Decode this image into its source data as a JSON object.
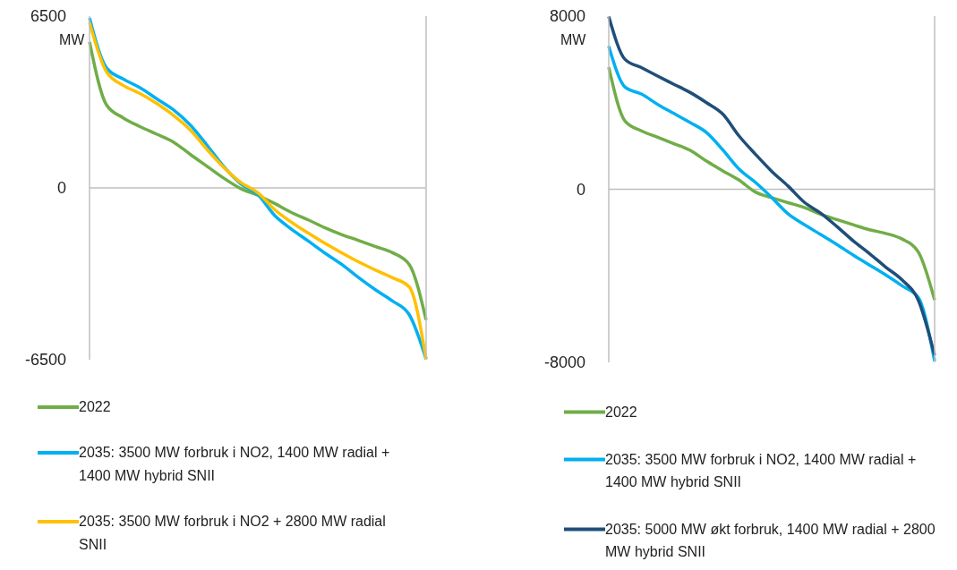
{
  "chart_data": [
    {
      "type": "line",
      "ylabel": "MW",
      "categories": [
        null,
        null,
        null,
        null,
        null,
        null,
        null,
        null,
        null,
        null,
        null,
        null,
        null,
        null,
        null,
        null,
        null,
        null,
        null,
        null,
        null
      ],
      "ylim": [
        -6500,
        6500
      ],
      "yticks": [
        -6500,
        0,
        6500
      ],
      "legend": "bottom",
      "ref_lines": [
        {
          "axis": "y",
          "value": 0,
          "color": "#bfbfbf"
        }
      ],
      "series": [
        {
          "name": "2022",
          "color": "#70ad47",
          "values": [
            5520,
            3150,
            2650,
            2320,
            2030,
            1730,
            1260,
            810,
            360,
            -30,
            -280,
            -590,
            -930,
            -1210,
            -1510,
            -1770,
            -1990,
            -2220,
            -2450,
            -2900,
            -5000
          ]
        },
        {
          "name": "2035: 3500 MW forbruk i NO2, 1400 MW radial + 1400 MW hybrid SNII",
          "color": "#00b0f0",
          "values": [
            6430,
            4550,
            4120,
            3790,
            3370,
            2950,
            2370,
            1600,
            790,
            150,
            -250,
            -1040,
            -1560,
            -2010,
            -2470,
            -2900,
            -3400,
            -3860,
            -4280,
            -4800,
            -6480
          ]
        },
        {
          "name": "2035: 3500 MW forbruk i NO2 + 2800 MW radial SNII",
          "color": "#ffc000",
          "values": [
            6260,
            4400,
            3880,
            3570,
            3190,
            2740,
            2180,
            1440,
            760,
            200,
            -180,
            -820,
            -1300,
            -1710,
            -2100,
            -2460,
            -2800,
            -3110,
            -3400,
            -3750,
            -6480
          ]
        }
      ]
    },
    {
      "type": "line",
      "ylabel": "MW",
      "categories": [
        null,
        null,
        null,
        null,
        null,
        null,
        null,
        null,
        null,
        null,
        null,
        null,
        null,
        null,
        null,
        null,
        null,
        null,
        null,
        null,
        null
      ],
      "ylim": [
        -8000,
        8000
      ],
      "yticks": [
        -8000,
        0,
        8000
      ],
      "legend": "bottom",
      "ref_lines": [
        {
          "axis": "y",
          "value": 0,
          "color": "#bfbfbf"
        }
      ],
      "series": [
        {
          "name": "2022",
          "color": "#70ad47",
          "values": [
            5640,
            3150,
            2700,
            2400,
            2100,
            1800,
            1300,
            850,
            420,
            -130,
            -390,
            -620,
            -840,
            -1150,
            -1400,
            -1640,
            -1870,
            -2040,
            -2300,
            -2900,
            -5120
          ]
        },
        {
          "name": "2035: 3500 MW forbruk i NO2, 1400 MW radial + 1400 MW hybrid SNII",
          "color": "#00b0f0",
          "values": [
            6610,
            4720,
            4400,
            3920,
            3500,
            3080,
            2620,
            1820,
            930,
            320,
            -380,
            -1130,
            -1630,
            -2090,
            -2550,
            -3040,
            -3500,
            -3960,
            -4460,
            -5000,
            -7940
          ]
        },
        {
          "name": "2035: 5000 MW økt forbruk, 1400 MW radial + 2800 MW hybrid SNII",
          "color": "#1f4e79",
          "values": [
            7980,
            6000,
            5620,
            5230,
            4850,
            4470,
            4000,
            3470,
            2460,
            1620,
            830,
            150,
            -600,
            -1100,
            -1720,
            -2380,
            -2970,
            -3600,
            -4190,
            -5130,
            -7670
          ]
        }
      ]
    }
  ]
}
